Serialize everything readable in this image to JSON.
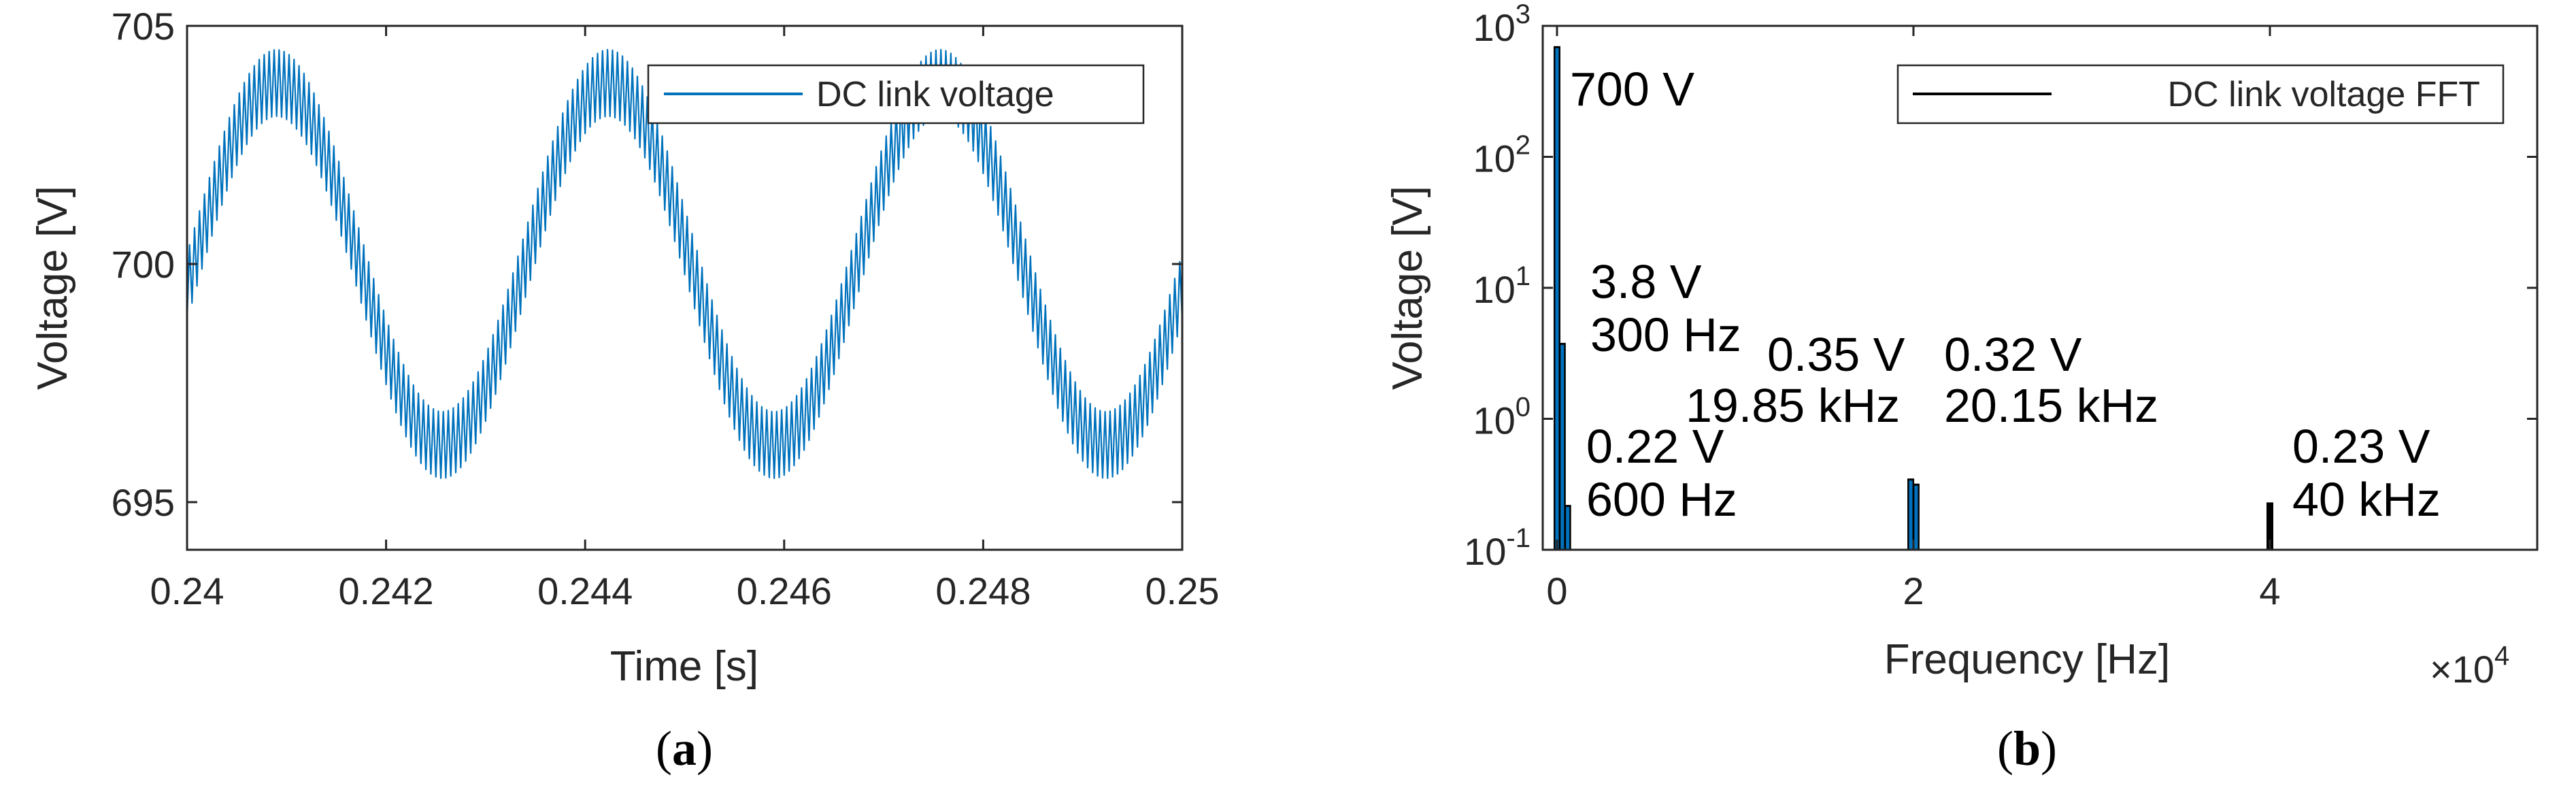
{
  "chart_data": [
    {
      "panel": "a",
      "type": "line",
      "caption_letter": "a",
      "xlabel": "Time [s]",
      "ylabel": "Voltage [V]",
      "xlim": [
        0.24,
        0.25
      ],
      "ylim": [
        694,
        705
      ],
      "x_ticks": [
        "0.24",
        "0.242",
        "0.244",
        "0.246",
        "0.248",
        "0.25"
      ],
      "y_ticks": [
        "695",
        "700",
        "705"
      ],
      "grid": false,
      "legend_position": "top-right",
      "series": [
        {
          "name": "DC link voltage",
          "color": "#0072BD",
          "dc_offset": 700,
          "low_freq_hz": 300,
          "low_freq_amplitude": 3.8,
          "switching_ripple_hz": 20000,
          "switching_ripple_amplitude": 0.7
        }
      ]
    },
    {
      "panel": "b",
      "type": "bar",
      "caption_letter": "b",
      "xlabel": "Frequency [Hz]",
      "ylabel": "Voltage [V]",
      "y_scale": "log",
      "xlim": [
        -800,
        55000
      ],
      "ylim": [
        0.1,
        1000
      ],
      "x_ticks": [
        "0",
        "2",
        "4"
      ],
      "x_exponent_label": "×10",
      "x_exponent_power": "4",
      "y_ticks": [
        {
          "base": "10",
          "exp": "-1"
        },
        {
          "base": "10",
          "exp": "0"
        },
        {
          "base": "10",
          "exp": "1"
        },
        {
          "base": "10",
          "exp": "2"
        },
        {
          "base": "10",
          "exp": "3"
        }
      ],
      "grid": false,
      "legend_position": "top-right",
      "series_name": "DC link voltage FFT",
      "bars": [
        {
          "frequency": 0,
          "value": 700,
          "color": "#0072BD"
        },
        {
          "frequency": 300,
          "value": 3.8,
          "color": "#0072BD"
        },
        {
          "frequency": 600,
          "value": 0.22,
          "color": "#0072BD"
        },
        {
          "frequency": 19850,
          "value": 0.35,
          "color": "#0072BD"
        },
        {
          "frequency": 20150,
          "value": 0.32,
          "color": "#0072BD"
        },
        {
          "frequency": 40000,
          "value": 0.23,
          "color": "#000000"
        }
      ],
      "annotations": [
        {
          "id": "dc",
          "lines": [
            "700 V"
          ]
        },
        {
          "id": "f300",
          "lines": [
            "3.8 V",
            "300 Hz"
          ]
        },
        {
          "id": "f600",
          "lines": [
            "0.22 V",
            "600 Hz"
          ]
        },
        {
          "id": "f19850",
          "lines": [
            "0.35 V",
            "19.85 kHz"
          ]
        },
        {
          "id": "f20150",
          "lines": [
            "0.32 V",
            "20.15 kHz"
          ]
        },
        {
          "id": "f40000",
          "lines": [
            "0.23 V",
            "40 kHz"
          ]
        }
      ]
    }
  ]
}
